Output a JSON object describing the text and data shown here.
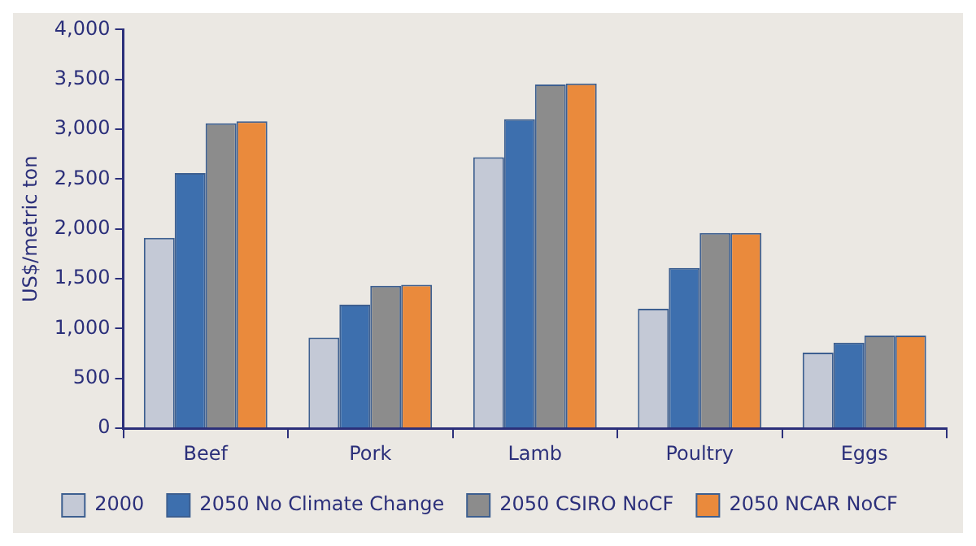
{
  "chart_data": {
    "type": "bar",
    "ylabel": "US$/metric ton",
    "categories": [
      "Beef",
      "Pork",
      "Lamb",
      "Poultry",
      "Eggs"
    ],
    "series": [
      {
        "name": "2000",
        "color": "#c4c9d6",
        "values": [
          1910,
          910,
          2720,
          1200,
          760
        ]
      },
      {
        "name": "2050 No Climate Change",
        "color": "#3d6fae",
        "values": [
          2560,
          1240,
          3100,
          1610,
          860
        ]
      },
      {
        "name": "2050 CSIRO NoCF",
        "color": "#8c8c8c",
        "values": [
          3060,
          1430,
          3450,
          1960,
          930
        ]
      },
      {
        "name": "2050 NCAR NoCF",
        "color": "#ea8a3c",
        "values": [
          3080,
          1440,
          3460,
          1960,
          930
        ]
      }
    ],
    "ylim": [
      0,
      4000
    ],
    "yticks": [
      {
        "value": 0,
        "label": "0"
      },
      {
        "value": 500,
        "label": "500"
      },
      {
        "value": 1000,
        "label": "1,000"
      },
      {
        "value": 1500,
        "label": "1,500"
      },
      {
        "value": 2000,
        "label": "2,000"
      },
      {
        "value": 2500,
        "label": "2,500"
      },
      {
        "value": 3000,
        "label": "3,000"
      },
      {
        "value": 3500,
        "label": "3,500"
      },
      {
        "value": 4000,
        "label": "4,000"
      }
    ],
    "grid": false,
    "legend": "bottom"
  }
}
